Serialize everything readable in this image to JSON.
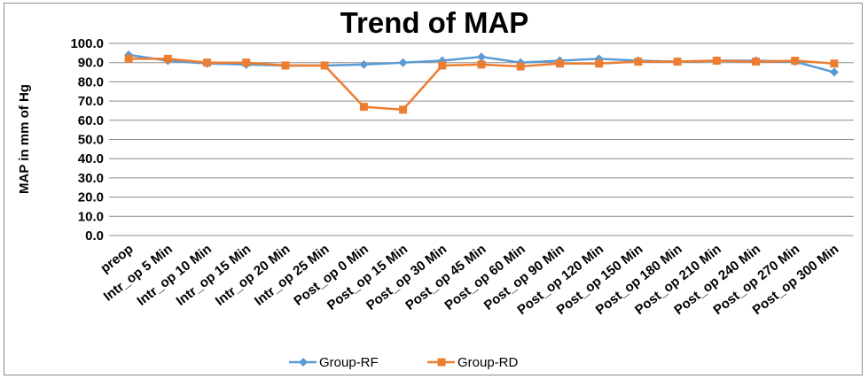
{
  "chart_data": {
    "type": "line",
    "title": "Trend of MAP",
    "xlabel": "",
    "ylabel": "MAP in mm of Hg",
    "ylim": [
      0,
      100
    ],
    "yticks": [
      "0.0",
      "10.0",
      "20.0",
      "30.0",
      "40.0",
      "50.0",
      "60.0",
      "70.0",
      "80.0",
      "90.0",
      "100.0"
    ],
    "grid": true,
    "legend_position": "bottom",
    "categories": [
      "preop",
      "Intr_op 5 Min",
      "Intr_op 10 Min",
      "Intr_op 15 Min",
      "Intr_op 20 Min",
      "Intr_op 25 Min",
      "Post_op 0 Min",
      "Post_op 15 Min",
      "Post_op 30 Min",
      "Post_op 45 Min",
      "Post_op 60 Min",
      "Post_op 90 Min",
      "Post_op 120 Min",
      "Post_op 150 Min",
      "Post_op 180 Min",
      "Post_op 210 Min",
      "Post_op 240 Min",
      "Post_op 270 Min",
      "Post_op 300 Min"
    ],
    "series": [
      {
        "name": "Group-RF",
        "color": "#5B9BD5",
        "marker": "diamond",
        "values": [
          94,
          91,
          89.5,
          89,
          88.5,
          88.5,
          89,
          90,
          91,
          93,
          90,
          91,
          92,
          91,
          90.5,
          91,
          91,
          90.5,
          85
        ]
      },
      {
        "name": "Group-RD",
        "color": "#ED7D31",
        "marker": "square",
        "values": [
          92,
          92,
          90,
          90,
          88.5,
          88.5,
          67,
          65.5,
          88.5,
          89,
          88,
          89.5,
          89.5,
          90.5,
          90.5,
          91,
          90.5,
          91,
          89.5
        ]
      }
    ]
  }
}
